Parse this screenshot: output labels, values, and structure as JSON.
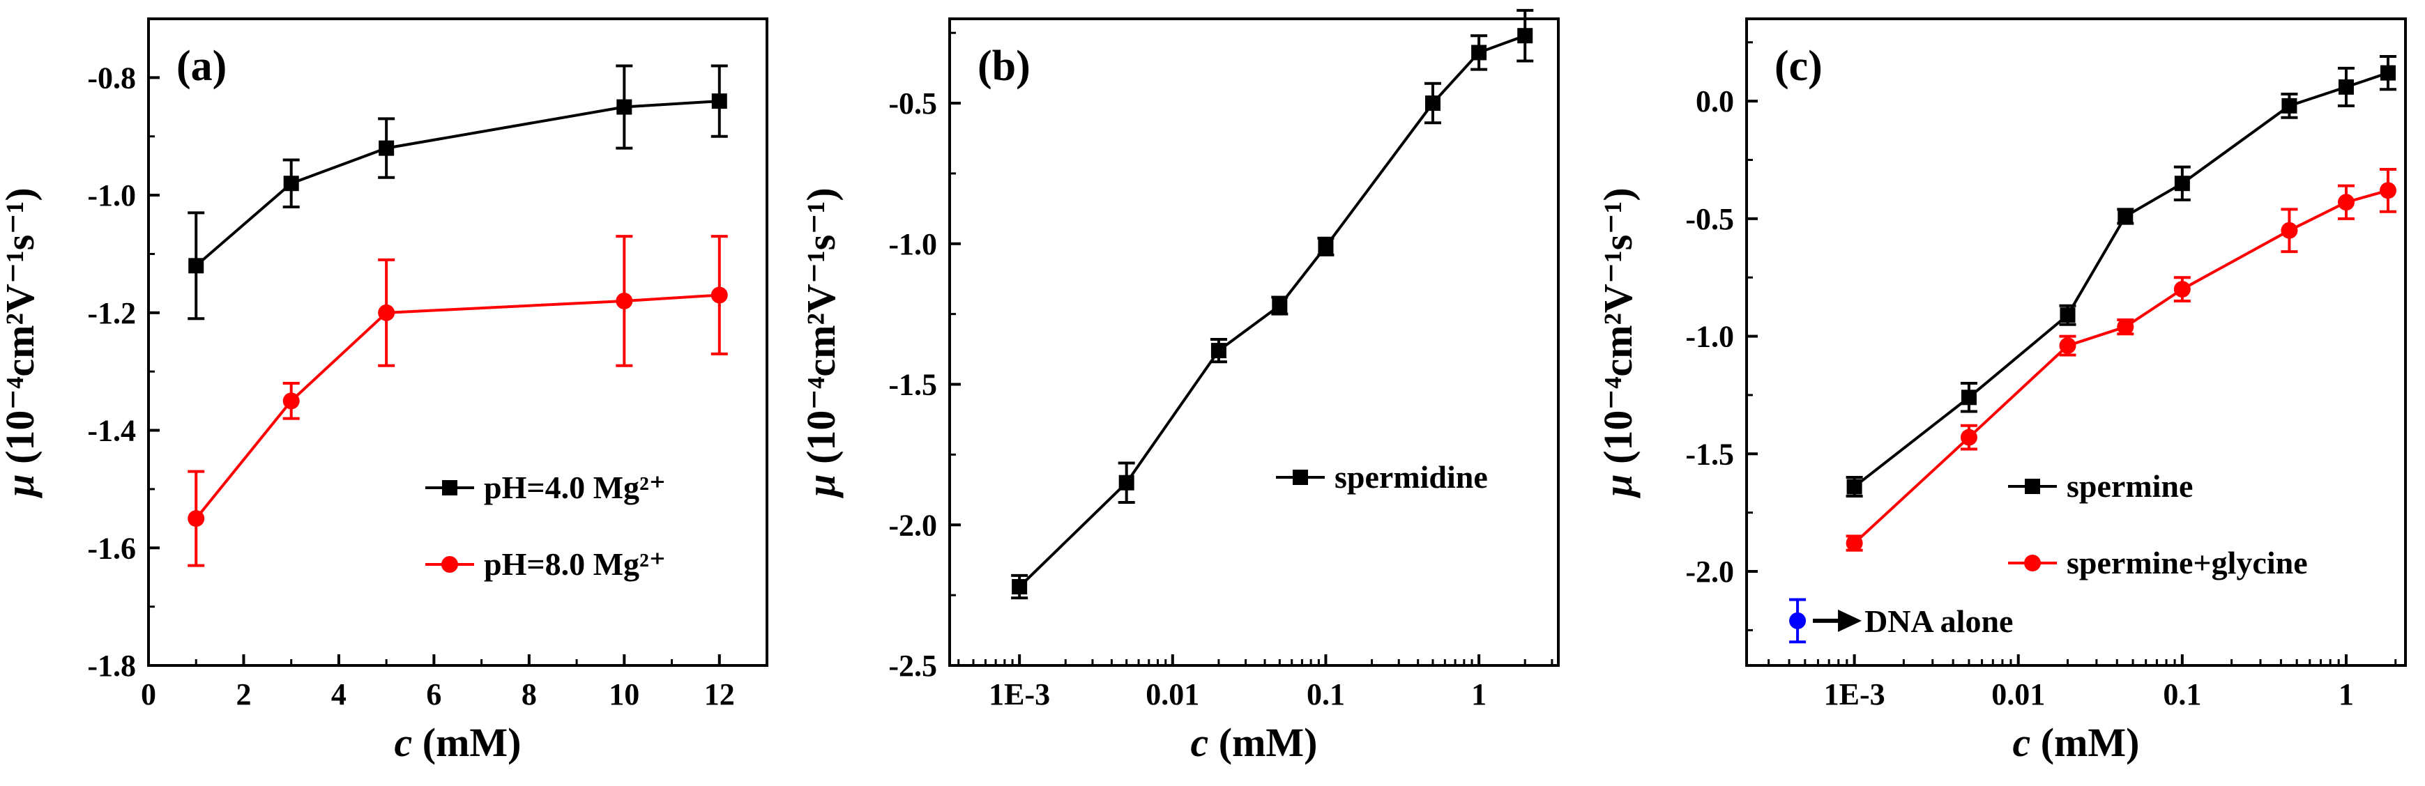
{
  "chart_data": [
    {
      "type": "line",
      "panel_label": "(a)",
      "xlabel": "c",
      "xunit": " (mM)",
      "ylabel": "μ",
      "yunit": " (10⁻⁴cm²V⁻¹s⁻¹)",
      "x_scale": "linear",
      "xlim": [
        0,
        13
      ],
      "ylim": [
        -1.8,
        -0.7
      ],
      "x_ticks": [
        0,
        2,
        4,
        6,
        8,
        10,
        12
      ],
      "x_tick_labels": [
        "0",
        "2",
        "4",
        "6",
        "8",
        "10",
        "12"
      ],
      "y_ticks": [
        -1.8,
        -1.6,
        -1.4,
        -1.2,
        -1.0,
        -0.8
      ],
      "y_tick_labels": [
        "-1.8",
        "-1.6",
        "-1.4",
        "-1.2",
        "-1.0",
        "-0.8"
      ],
      "legend_position": "lower-right",
      "series": [
        {
          "name": "pH=4.0 Mg²⁺",
          "color": "#000000",
          "marker": "square",
          "x": [
            1,
            3,
            5,
            10,
            12
          ],
          "y": [
            -1.12,
            -0.98,
            -0.92,
            -0.85,
            -0.84
          ],
          "err": [
            0.09,
            0.04,
            0.05,
            0.07,
            0.06
          ]
        },
        {
          "name": "pH=8.0 Mg²⁺",
          "color": "#ff0000",
          "marker": "circle",
          "x": [
            1,
            3,
            5,
            10,
            12
          ],
          "y": [
            -1.55,
            -1.35,
            -1.2,
            -1.18,
            -1.17
          ],
          "err": [
            0.08,
            0.03,
            0.09,
            0.11,
            0.1
          ]
        }
      ]
    },
    {
      "type": "line",
      "panel_label": "(b)",
      "xlabel": "c",
      "xunit": " (mM)",
      "ylabel": "μ",
      "yunit": " (10⁻⁴cm²V⁻¹s⁻¹)",
      "x_scale": "log",
      "xlim": [
        0.00035,
        3.3
      ],
      "ylim": [
        -2.5,
        -0.2
      ],
      "x_ticks": [
        0.001,
        0.01,
        0.1,
        1
      ],
      "x_tick_labels": [
        "1E-3",
        "0.01",
        "0.1",
        "1"
      ],
      "y_ticks": [
        -2.5,
        -2.0,
        -1.5,
        -1.0,
        -0.5
      ],
      "y_tick_labels": [
        "-2.5",
        "-2.0",
        "-1.5",
        "-1.0",
        "-0.5"
      ],
      "legend_position": "center-right",
      "series": [
        {
          "name": "spermidine",
          "color": "#000000",
          "marker": "square",
          "x": [
            0.001,
            0.005,
            0.02,
            0.05,
            0.1,
            0.5,
            1,
            2
          ],
          "y": [
            -2.22,
            -1.85,
            -1.38,
            -1.22,
            -1.01,
            -0.5,
            -0.32,
            -0.26
          ],
          "err": [
            0.04,
            0.07,
            0.04,
            0.03,
            0.03,
            0.07,
            0.06,
            0.09
          ]
        }
      ]
    },
    {
      "type": "line",
      "panel_label": "(c)",
      "xlabel": "c",
      "xunit": " (mM)",
      "ylabel": "μ",
      "yunit": " (10⁻⁴cm²V⁻¹s⁻¹)",
      "x_scale": "log",
      "xlim": [
        0.00022,
        2.3
      ],
      "ylim": [
        -2.4,
        0.35
      ],
      "x_ticks": [
        0.001,
        0.01,
        0.1,
        1
      ],
      "x_tick_labels": [
        "1E-3",
        "0.01",
        "0.1",
        "1"
      ],
      "y_ticks": [
        -2.0,
        -1.5,
        -1.0,
        -0.5,
        0.0
      ],
      "y_tick_labels": [
        "-2.0",
        "-1.5",
        "-1.0",
        "-0.5",
        "0.0"
      ],
      "legend_position": "lower-right",
      "series": [
        {
          "name": "spermine",
          "color": "#000000",
          "marker": "square",
          "x": [
            0.001,
            0.005,
            0.02,
            0.045,
            0.1,
            0.45,
            1,
            1.8
          ],
          "y": [
            -1.64,
            -1.26,
            -0.91,
            -0.49,
            -0.35,
            -0.02,
            0.06,
            0.12
          ],
          "err": [
            0.04,
            0.06,
            0.04,
            0.03,
            0.07,
            0.05,
            0.08,
            0.07
          ]
        },
        {
          "name": "spermine+glycine",
          "color": "#ff0000",
          "marker": "circle",
          "x": [
            0.001,
            0.005,
            0.02,
            0.045,
            0.1,
            0.45,
            1,
            1.8
          ],
          "y": [
            -1.88,
            -1.43,
            -1.04,
            -0.96,
            -0.8,
            -0.55,
            -0.43,
            -0.38
          ],
          "err": [
            0.03,
            0.05,
            0.04,
            0.03,
            0.05,
            0.09,
            0.07,
            0.09
          ]
        },
        {
          "name": "DNA alone",
          "color": "#0000ff",
          "marker": "circle",
          "x": [
            0.00045
          ],
          "y": [
            -2.21
          ],
          "err": [
            0.09
          ],
          "annotation": "DNA alone"
        }
      ]
    }
  ]
}
